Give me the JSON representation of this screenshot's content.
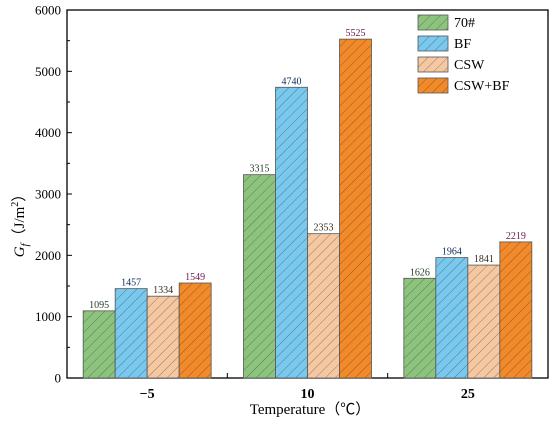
{
  "chart_data": {
    "type": "bar",
    "categories": [
      "−5",
      "10",
      "25"
    ],
    "series": [
      {
        "name": "70#",
        "values": [
          1095,
          3315,
          1626
        ],
        "color": "#8cc47e",
        "label_color": "#1f3b1f"
      },
      {
        "name": "BF",
        "values": [
          1457,
          4740,
          1964
        ],
        "color": "#79c8ee",
        "label_color": "#0e2c5a"
      },
      {
        "name": "CSW",
        "values": [
          1334,
          2353,
          1841
        ],
        "color": "#f5c8a2",
        "label_color": "#3a2a1a"
      },
      {
        "name": "CSW+BF",
        "values": [
          1549,
          5525,
          2219
        ],
        "color": "#f28a2a",
        "label_color": "#6b1a4f"
      }
    ],
    "xlabel": "Temperature（℃）",
    "ylabel_main": "G",
    "ylabel_sub": "f",
    "ylabel_unit": "（J/m",
    "ylabel_sup": "2",
    "ylabel_close": "）",
    "ylim": [
      0,
      6000
    ],
    "yticks": [
      "0",
      "1000",
      "2000",
      "3000",
      "4000",
      "5000",
      "6000"
    ],
    "legend_position": "top-right",
    "grid": false
  }
}
